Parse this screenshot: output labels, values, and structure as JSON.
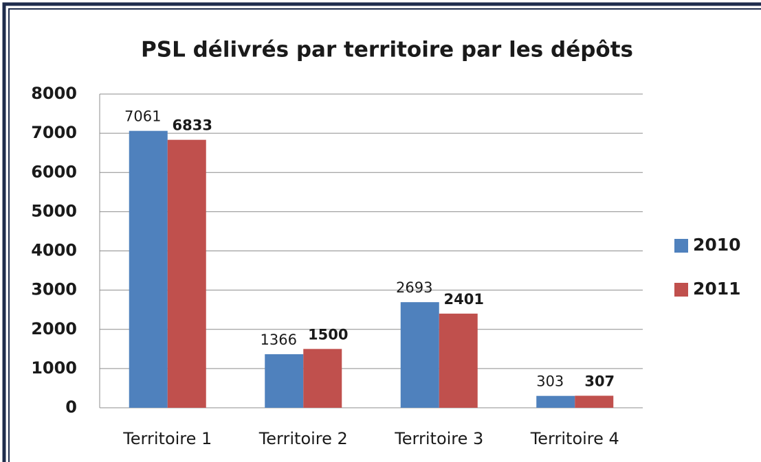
{
  "chart_data": {
    "type": "bar",
    "title": "PSL délivrés par territoire par les dépôts",
    "categories": [
      "Territoire 1",
      "Territoire 2",
      "Territoire 3",
      "Territoire 4"
    ],
    "series": [
      {
        "name": "2010",
        "color": "#4f81bd",
        "label_color": "#1f2d4d",
        "values": [
          7061,
          1366,
          2693,
          303
        ]
      },
      {
        "name": "2011",
        "color": "#c0504d",
        "label_color": "#c00000",
        "values": [
          6833,
          1500,
          2401,
          307
        ]
      }
    ],
    "ylim": [
      0,
      8000
    ],
    "yticks": [
      0,
      1000,
      2000,
      3000,
      4000,
      5000,
      6000,
      7000,
      8000
    ],
    "grid": true,
    "legend": "right"
  }
}
